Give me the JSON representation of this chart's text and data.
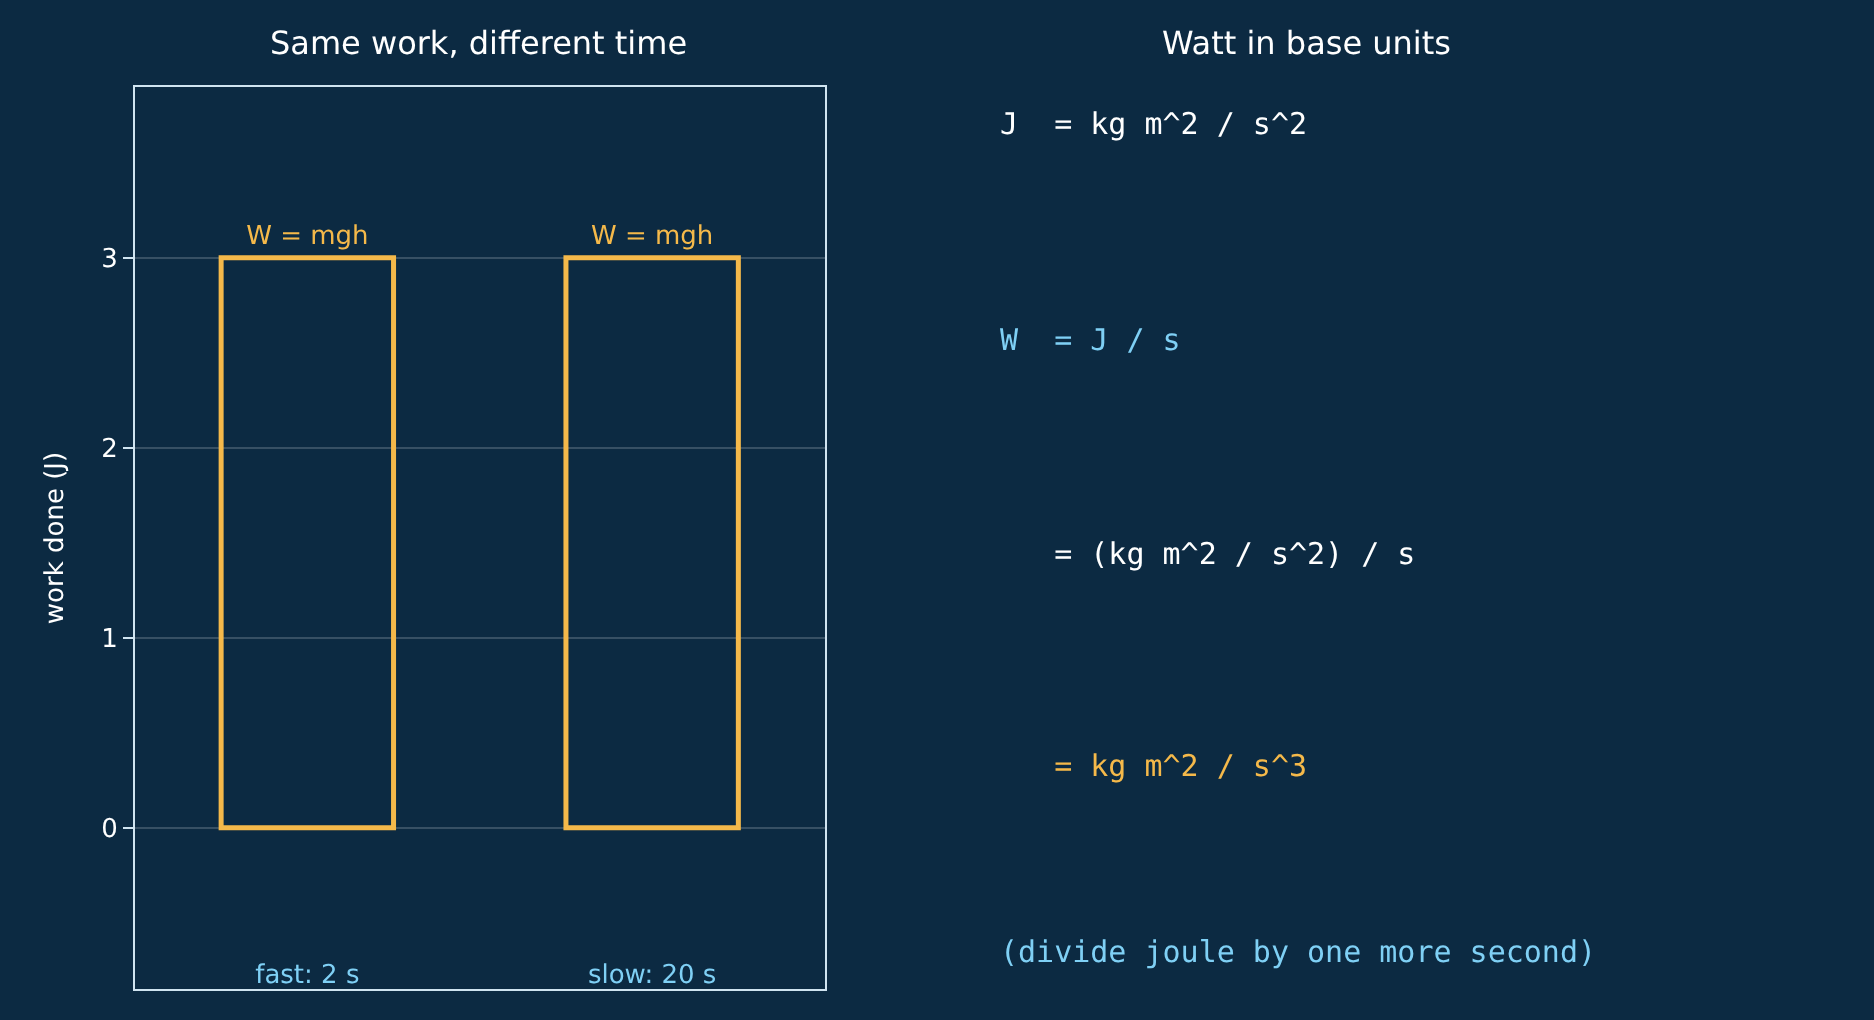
{
  "chart_data": [
    {
      "type": "bar",
      "title": "Same work, different time",
      "ylabel": "work done (J)",
      "categories": [
        "fast: 2 s",
        "slow: 20 s"
      ],
      "values": [
        3,
        3
      ],
      "color": "#f5b94a",
      "value_labels": [
        "W = mgh",
        "W = mgh"
      ],
      "ylim": [
        -0.85,
        3.9
      ],
      "yticks": [
        0,
        1,
        2,
        3
      ],
      "grid": "y"
    },
    {
      "type": "other",
      "title": "Watt in base units",
      "annotations": [
        "J  = kg m^2 / s^2",
        "W  = J / s",
        "   = (kg m^2 / s^2) / s",
        "   = kg m^2 / s^3",
        "(divide joule by one more second)"
      ],
      "colors": [
        "#ffffff",
        "#7fd0f5",
        "#ffffff",
        "#f5b94a",
        "#7fd0f5"
      ]
    }
  ]
}
